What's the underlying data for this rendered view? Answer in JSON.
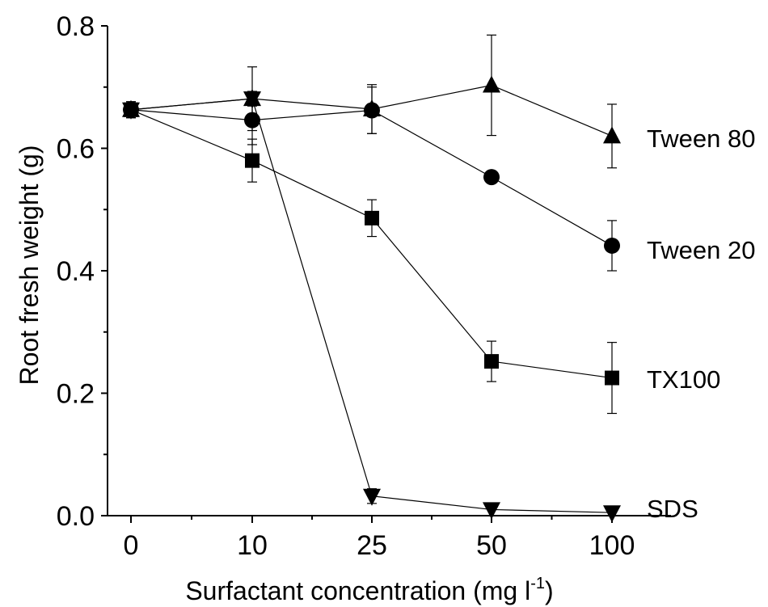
{
  "chart_data": {
    "type": "line",
    "categories": [
      "0",
      "10",
      "25",
      "50",
      "100"
    ],
    "xlabel": "Surfactant concentration (mg l",
    "xlabel_superscript": "-1",
    "xlabel_suffix": ")",
    "ylabel": "Root fresh weight (g)",
    "ylim": [
      0,
      0.8
    ],
    "yticks": [
      "0.0",
      "0.2",
      "0.4",
      "0.6",
      "0.8"
    ],
    "ytick_values": [
      0,
      0.2,
      0.4,
      0.6,
      0.8
    ],
    "grid": false,
    "legend": "series labels at right end of lines",
    "series": [
      {
        "name": "Tween 80",
        "marker": "triangle-up",
        "values": [
          0.663,
          0.681,
          0.664,
          0.703,
          0.62
        ],
        "errors": [
          0.013,
          0.052,
          0.04,
          0.082,
          0.052
        ]
      },
      {
        "name": "Tween 20",
        "marker": "circle",
        "values": [
          0.663,
          0.646,
          0.662,
          0.553,
          0.441
        ],
        "errors": [
          0.013,
          0.04,
          0.038,
          0.0,
          0.041
        ]
      },
      {
        "name": "TX100",
        "marker": "square",
        "values": [
          0.663,
          0.58,
          0.486,
          0.252,
          0.225
        ],
        "errors": [
          0.013,
          0.035,
          0.03,
          0.033,
          0.058
        ]
      },
      {
        "name": "SDS",
        "marker": "triangle-down",
        "values": [
          0.663,
          0.681,
          0.032,
          0.01,
          0.005
        ],
        "errors": [
          0.013,
          0.012,
          0.012,
          0.0,
          0.0
        ]
      }
    ]
  },
  "colors": {
    "ink": "#000000",
    "background": "#ffffff"
  }
}
